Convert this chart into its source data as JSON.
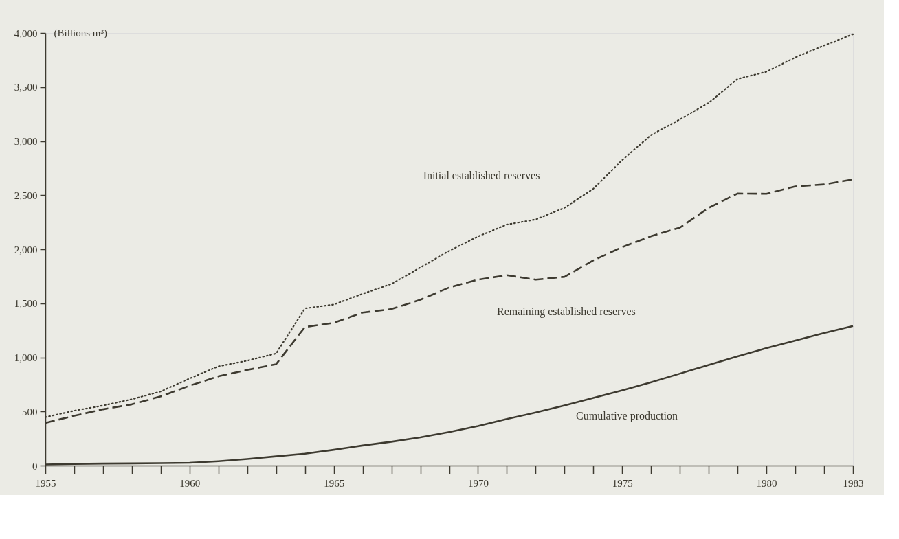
{
  "chart_data": {
    "type": "line",
    "ylabel": "(Billions m³)",
    "x": [
      1955,
      1956,
      1957,
      1958,
      1959,
      1960,
      1961,
      1962,
      1963,
      1964,
      1965,
      1966,
      1967,
      1968,
      1969,
      1970,
      1971,
      1972,
      1973,
      1974,
      1975,
      1976,
      1977,
      1978,
      1979,
      1980,
      1981,
      1982,
      1983
    ],
    "series": [
      {
        "color": "#3d3a30",
        "line_style": "dotted",
        "values": [
          447,
          507,
          555,
          613,
          685,
          805,
          917,
          970,
          1036,
          1453,
          1489,
          1588,
          1679,
          1831,
          1985,
          2118,
          2228,
          2275,
          2383,
          2560,
          2825,
          3056,
          3200,
          3354,
          3575,
          3641,
          3774,
          3884,
          3988
        ]
      },
      {
        "color": "#3d3a30",
        "line_style": "dashed",
        "values": [
          394,
          460,
          520,
          566,
          639,
          738,
          825,
          884,
          937,
          1281,
          1320,
          1414,
          1447,
          1533,
          1646,
          1719,
          1760,
          1719,
          1745,
          1897,
          2020,
          2120,
          2200,
          2383,
          2515,
          2513,
          2581,
          2599,
          2646
        ]
      },
      {
        "color": "#3d3a30",
        "line_style": "solid",
        "values": [
          10,
          15,
          18,
          20,
          22,
          25,
          40,
          60,
          85,
          110,
          145,
          185,
          220,
          260,
          310,
          365,
          430,
          490,
          555,
          625,
          695,
          770,
          850,
          930,
          1010,
          1085,
          1155,
          1225,
          1291
        ]
      }
    ],
    "annotations": [
      "Initial established reserves",
      "Remaining established reserves",
      "Cumulative production"
    ],
    "xlim": [
      1955,
      1983
    ],
    "xticks": [
      1955,
      {
        "value": 1956,
        "label": null
      },
      {
        "value": 1957,
        "label": null
      },
      {
        "value": 1958,
        "label": null
      },
      {
        "value": 1959,
        "label": null
      },
      1960,
      {
        "value": 1961,
        "label": null
      },
      {
        "value": 1962,
        "label": null
      },
      {
        "value": 1963,
        "label": null
      },
      {
        "value": 1964,
        "label": null
      },
      1965,
      {
        "value": 1966,
        "label": null
      },
      {
        "value": 1967,
        "label": null
      },
      {
        "value": 1968,
        "label": null
      },
      {
        "value": 1969,
        "label": null
      },
      1970,
      {
        "value": 1971,
        "label": null
      },
      {
        "value": 1972,
        "label": null
      },
      {
        "value": 1973,
        "label": null
      },
      {
        "value": 1974,
        "label": null
      },
      1975,
      {
        "value": 1976,
        "label": null
      },
      {
        "value": 1977,
        "label": null
      },
      {
        "value": 1978,
        "label": null
      },
      {
        "value": 1979,
        "label": null
      },
      1980,
      {
        "value": 1981,
        "label": null
      },
      {
        "value": 1982,
        "label": null
      },
      1983
    ],
    "ylim": [
      0,
      4000
    ],
    "yticks": [
      0,
      {
        "value": 500,
        "label": "500"
      },
      {
        "value": 1000,
        "label": "1,000"
      },
      {
        "value": 1500,
        "label": "1,500"
      },
      {
        "value": 2000,
        "label": "2,000"
      },
      {
        "value": 2500,
        "label": "2,500"
      },
      {
        "value": 3000,
        "label": "3,000"
      },
      {
        "value": 3500,
        "label": "3,500"
      },
      {
        "value": 4000,
        "label": "4,000"
      }
    ],
    "grid": false
  }
}
